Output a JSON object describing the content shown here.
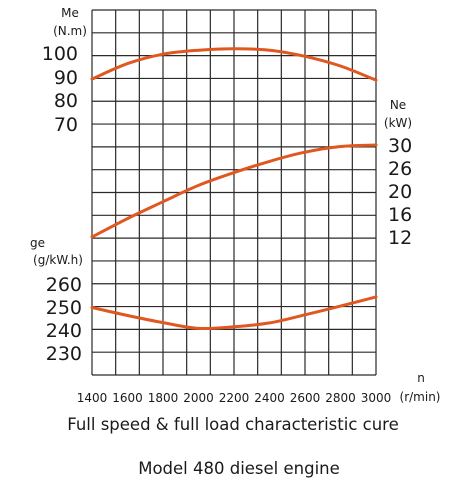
{
  "chart_data": {
    "type": "line",
    "xlabel": "n",
    "xunit": "(r/min)",
    "x": [
      1400,
      1600,
      1800,
      2000,
      2200,
      2400,
      2600,
      2800,
      3000
    ],
    "xticks": [
      "1400",
      "1600",
      "1800",
      "2000",
      "2200",
      "2400",
      "2600",
      "2800",
      "3000"
    ],
    "axes": [
      {
        "key": "me",
        "label": "Me",
        "unit": "(N.m)",
        "side": "left",
        "ticks": [
          "100",
          "90",
          "80",
          "70"
        ],
        "range": [
          70,
          100
        ]
      },
      {
        "key": "ne",
        "label": "Ne",
        "unit": "(kW)",
        "side": "right",
        "ticks": [
          "30",
          "26",
          "20",
          "16",
          "12"
        ],
        "range": [
          12,
          30
        ]
      },
      {
        "key": "ge",
        "label": "ge",
        "unit": "(g/kW.h)",
        "side": "left",
        "ticks": [
          "260",
          "250",
          "240",
          "230"
        ],
        "range": [
          230,
          260
        ]
      }
    ],
    "series": [
      {
        "axis": "me",
        "values": [
          89,
          95.5,
          99.5,
          101.2,
          101.8,
          101.2,
          98.6,
          94.5,
          88.5
        ]
      },
      {
        "axis": "ne",
        "values": [
          12,
          15.6,
          18.9,
          22.1,
          24.6,
          26.8,
          28.6,
          29.7,
          30
        ]
      },
      {
        "axis": "ge",
        "values": [
          249.8,
          246.3,
          243.2,
          240.7,
          241.4,
          243.1,
          246.6,
          250.4,
          254.4
        ]
      }
    ],
    "grid": true
  },
  "captions": {
    "line1": "Full speed & full load characteristic cure",
    "line2": "Model 480 diesel engine"
  },
  "colors": {
    "curve": "#e0571f",
    "grid": "#2a2a2a"
  }
}
